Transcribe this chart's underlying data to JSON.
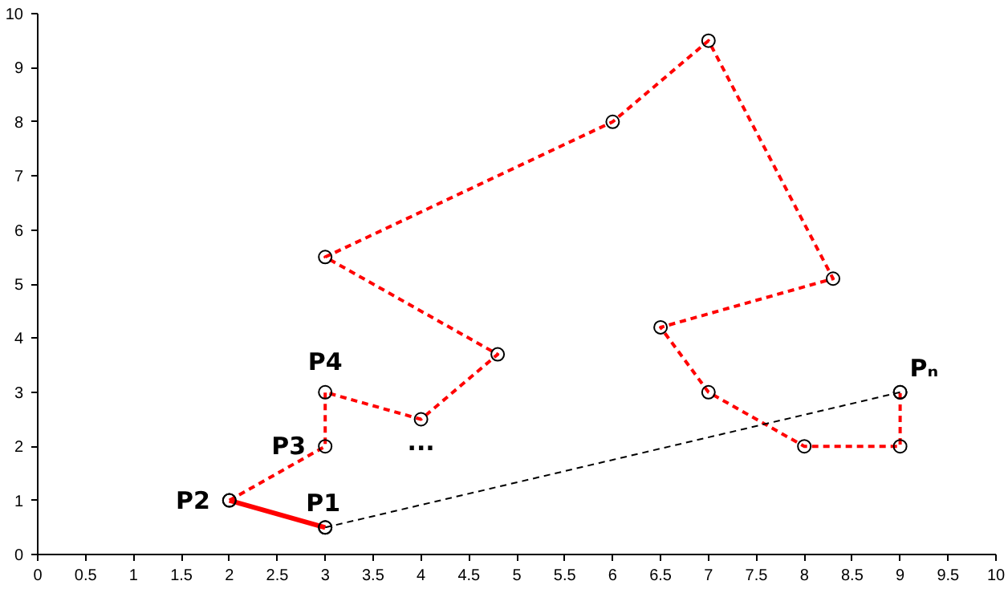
{
  "chart_data": {
    "type": "line",
    "xlim": [
      0,
      10
    ],
    "ylim": [
      0,
      10
    ],
    "xticks": [
      0,
      0.5,
      1,
      1.5,
      2,
      2.5,
      3,
      3.5,
      4,
      4.5,
      5,
      5.5,
      6,
      6.5,
      7,
      7.5,
      8,
      8.5,
      9,
      9.5,
      10
    ],
    "yticks": [
      0,
      1,
      2,
      3,
      4,
      5,
      6,
      7,
      8,
      9,
      10
    ],
    "grid": false,
    "series": [
      {
        "color": "#ff0000",
        "x": [
          3,
          2
        ],
        "values": [
          0.5,
          1
        ],
        "line_style": "solid",
        "marker": "circle"
      },
      {
        "color": "#ff0000",
        "x": [
          2,
          3,
          3,
          4,
          4.8,
          3,
          6,
          7,
          8.3,
          6.5,
          7,
          8,
          9,
          9
        ],
        "values": [
          1,
          2,
          3,
          2.5,
          3.7,
          5.5,
          8,
          9.5,
          5.1,
          4.2,
          3,
          2,
          2,
          3
        ],
        "line_style": "dashed",
        "marker": "circle"
      },
      {
        "color": "#000000",
        "x": [
          9,
          3
        ],
        "values": [
          3,
          0.5
        ],
        "line_style": "dashed",
        "marker": "circle"
      }
    ],
    "annotations": [
      {
        "text": "P1",
        "x": 3,
        "y": 0.5
      },
      {
        "text": "P2",
        "x": 2,
        "y": 1
      },
      {
        "text": "P3",
        "x": 3,
        "y": 2
      },
      {
        "text": "P4",
        "x": 3,
        "y": 3
      },
      {
        "text": "...",
        "x": 4,
        "y": 2.5
      },
      {
        "text": "Pₙ",
        "x": 9,
        "y": 3
      }
    ]
  }
}
